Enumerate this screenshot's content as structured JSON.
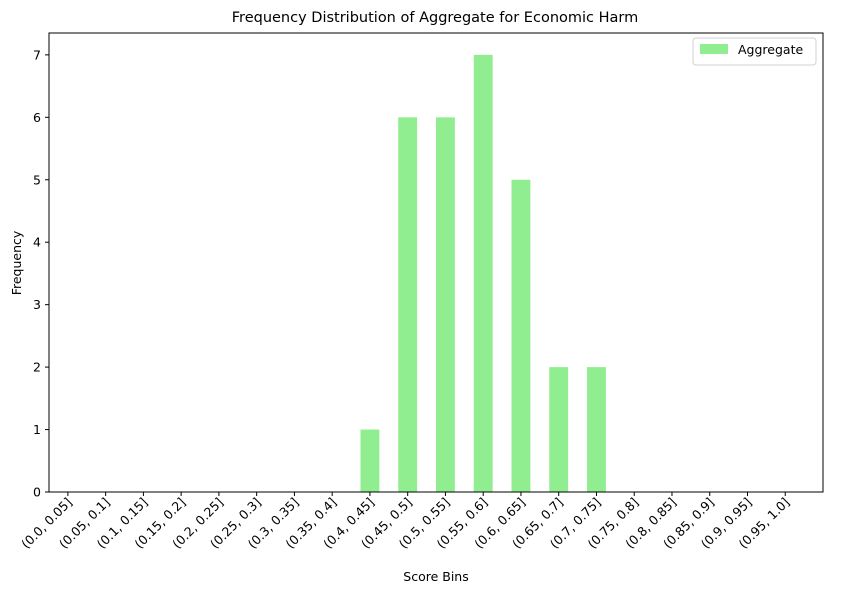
{
  "chart_data": {
    "type": "bar",
    "title": "Frequency Distribution of Aggregate for Economic Harm",
    "xlabel": "Score Bins",
    "ylabel": "Frequency",
    "categories": [
      "(0.0, 0.05]",
      "(0.05, 0.1]",
      "(0.1, 0.15]",
      "(0.15, 0.2]",
      "(0.2, 0.25]",
      "(0.25, 0.3]",
      "(0.3, 0.35]",
      "(0.35, 0.4]",
      "(0.4, 0.45]",
      "(0.45, 0.5]",
      "(0.5, 0.55]",
      "(0.55, 0.6]",
      "(0.6, 0.65]",
      "(0.65, 0.7]",
      "(0.7, 0.75]",
      "(0.75, 0.8]",
      "(0.8, 0.85]",
      "(0.85, 0.9]",
      "(0.9, 0.95]",
      "(0.95, 1.0]"
    ],
    "series": [
      {
        "name": "Aggregate",
        "color": "#90ee90",
        "values": [
          0,
          0,
          0,
          0,
          0,
          0,
          0,
          0,
          1,
          6,
          6,
          7,
          5,
          2,
          2,
          0,
          0,
          0,
          0,
          0
        ]
      }
    ],
    "ylim": [
      0,
      7.35
    ],
    "yticks": [
      0,
      1,
      2,
      3,
      4,
      5,
      6,
      7
    ],
    "grid": false,
    "legend": "top-right"
  }
}
